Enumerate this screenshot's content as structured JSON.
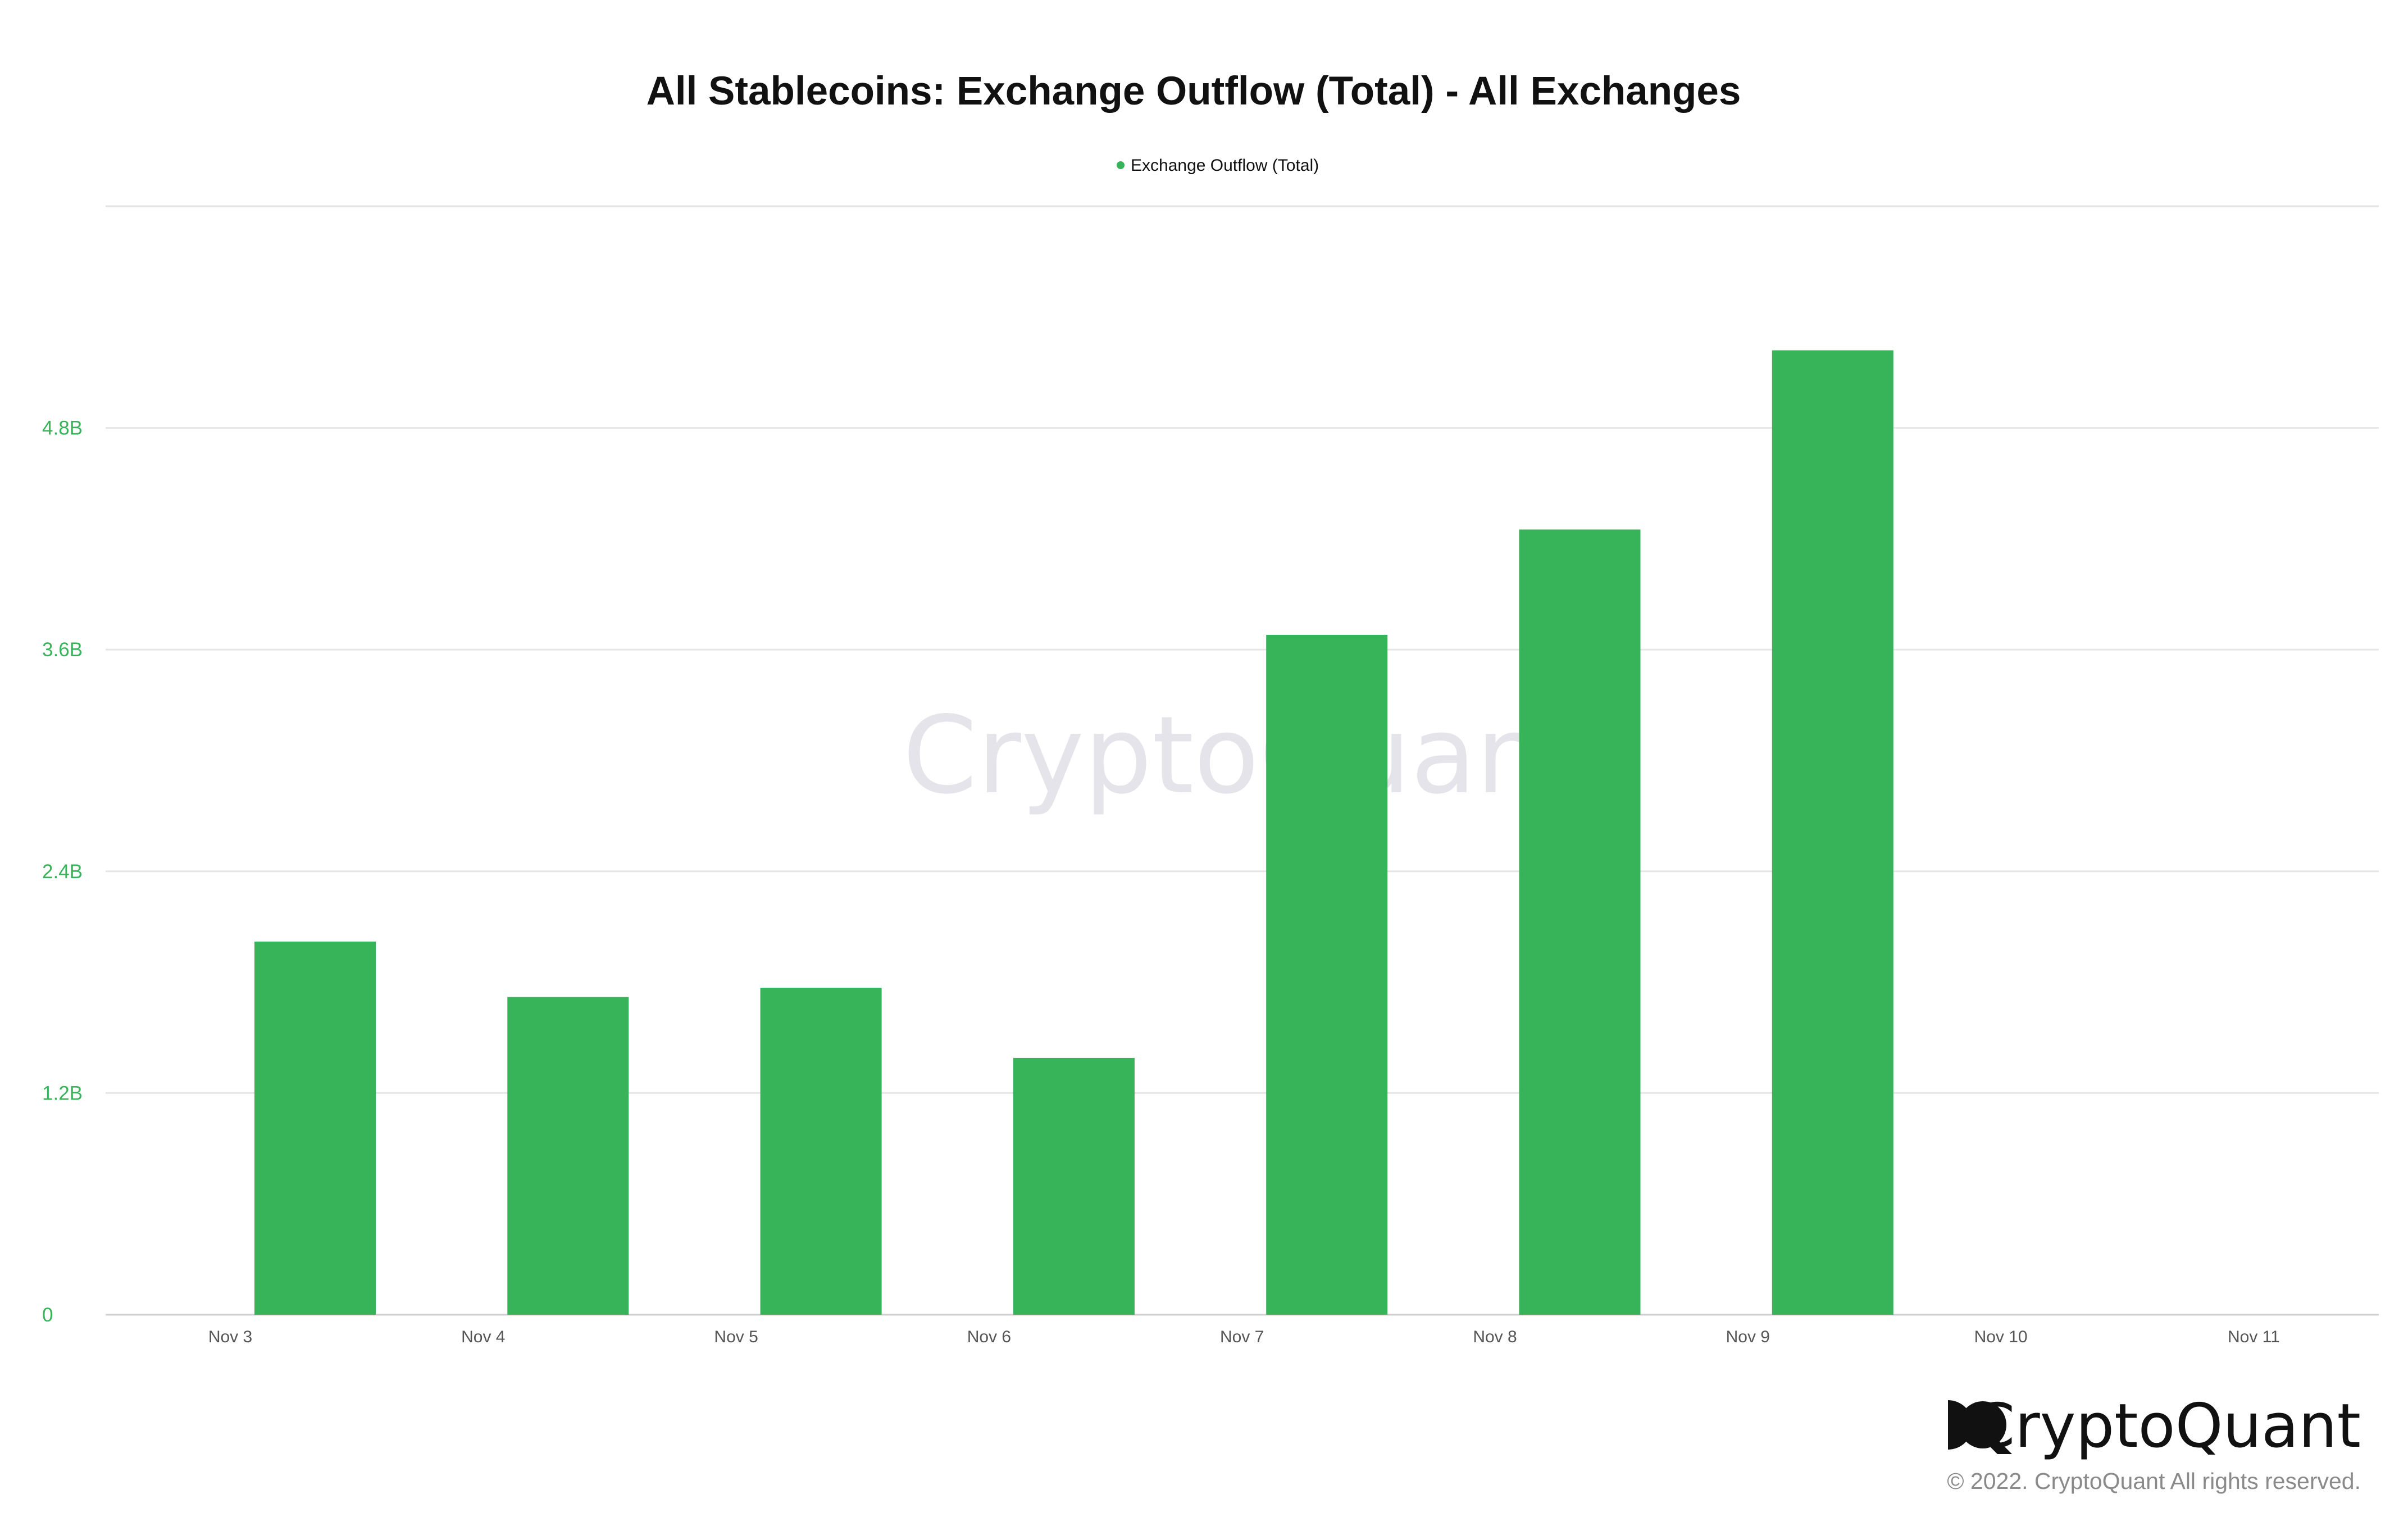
{
  "chart_data": {
    "type": "bar",
    "title": "All Stablecoins: Exchange Outflow (Total) - All Exchanges",
    "legend": {
      "placement": "top-center",
      "entries": [
        "Exchange Outflow (Total)"
      ]
    },
    "categories": [
      "Nov 3",
      "Nov 4",
      "Nov 5",
      "Nov 6",
      "Nov 7",
      "Nov 8",
      "Nov 9",
      "Nov 10",
      "Nov 11"
    ],
    "series": [
      {
        "name": "Exchange Outflow (Total)",
        "color": "#37b35a",
        "values": [
          2020000000.0,
          1720000000.0,
          1770000000.0,
          1390000000.0,
          3680000000.0,
          4250000000.0,
          5220000000.0,
          null,
          null
        ]
      }
    ],
    "yticks": [
      0,
      1200000000.0,
      2400000000.0,
      3600000000.0,
      4800000000.0
    ],
    "ytick_labels": [
      "0",
      "1.2B",
      "2.4B",
      "3.6B",
      "4.8B"
    ],
    "ylim": [
      0,
      6000000000.0
    ],
    "xlabel": "",
    "ylabel": "",
    "grid": true,
    "axis_label_color": "#37b35a"
  },
  "watermark": {
    "text": "CryptoQuant"
  },
  "brand": {
    "name": "CryptoQuant",
    "copyright": "© 2022. CryptoQuant All rights reserved.",
    "logo_icon": "cryptoquant-logo-icon"
  }
}
